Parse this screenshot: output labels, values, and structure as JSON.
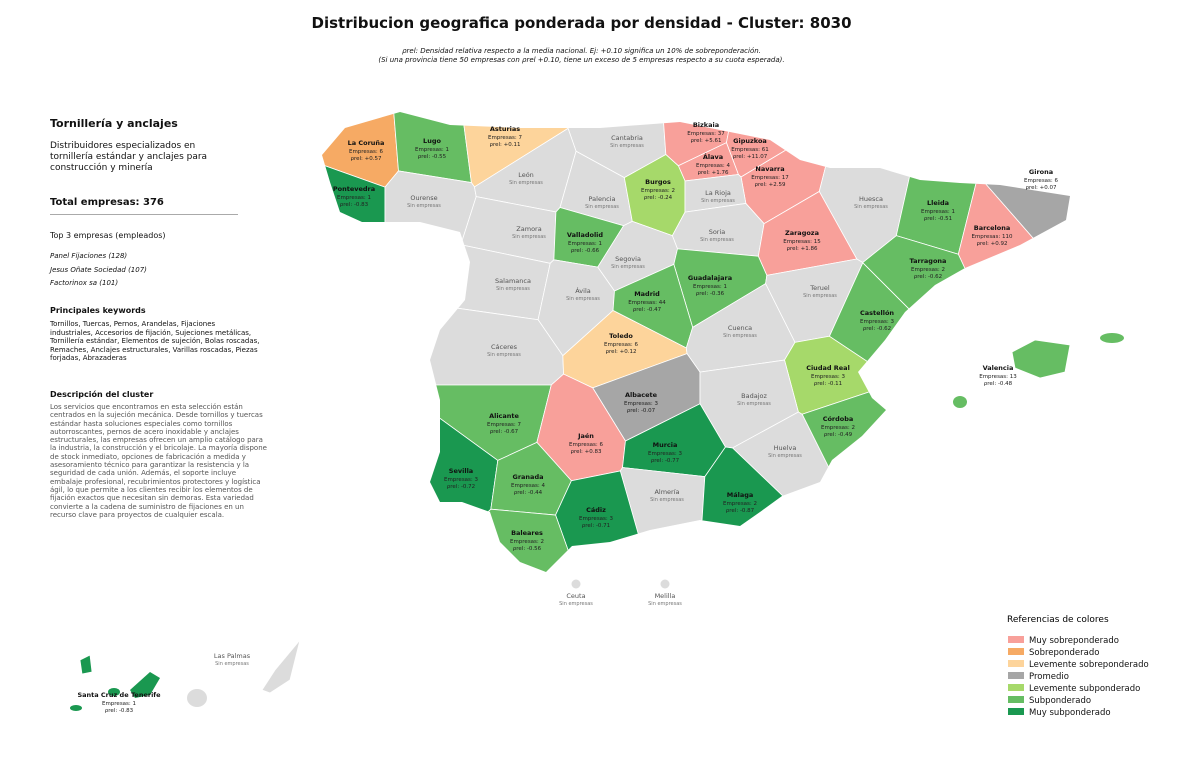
{
  "header": {
    "title": "Distribucion geografica ponderada por densidad - Cluster: 8030",
    "subtitle_lines": [
      "ρrel: Densidad relativa respecto a la media nacional. Ej: +0.10 significa un 10% de sobreponderación.",
      "(Si una provincia tiene 50 empresas con ρrel +0.10, tiene un exceso de 5 empresas respecto a su cuota esperada)."
    ]
  },
  "panel": {
    "title": "Tornillería y anclajes",
    "description": "Distribuidores especializados en tornillería estándar y anclajes para construcción y minería",
    "total": "Total empresas: 376",
    "top_title": "Top 3 empresas (empleados)",
    "top": [
      "Panel Fijaciones (128)",
      "Jesus Oñate Sociedad (107)",
      "Factorinox sa (101)"
    ],
    "keywords_title": "Principales keywords",
    "keywords": "Tornillos, Tuercas, Pernos, Arandelas, Fijaciones industriales, Accesorios de fijación, Sujeciones metálicas, Tornillería estándar, Elementos de sujeción, Bolas roscadas, Remaches, Anclajes estructurales, Varillas roscadas, Piezas forjadas, Abrazaderas",
    "cluster_title": "Descripción del cluster",
    "cluster_text": "Los servicios que encontramos en esta selección están centrados en la sujeción mecánica. Desde tornillos y tuercas estándar hasta soluciones especiales como tornillos autorroscantes, pernos de acero inoxidable y anclajes estructurales, las empresas ofrecen un amplio catálogo para la industria, la construcción y el bricolaje. La mayoría dispone de stock inmediato, opciones de fabricación a medida y asesoramiento técnico para garantizar la resistencia y la seguridad de cada unión. Además, el soporte incluye embalaje profesional, recubrimientos protectores y logística ágil, lo que permite a los clientes recibir los elementos de fijación exactos que necesitan sin demoras. Esta variedad convierte a la cadena de suministro de fijaciones en un recurso clave para proyectos de cualquier escala."
  },
  "legend": {
    "title": "Referencias de colores",
    "items": [
      {
        "label": "Muy sobreponderado",
        "color": "#f8a09a"
      },
      {
        "label": "Sobreponderado",
        "color": "#f6aa64"
      },
      {
        "label": "Levemente sobreponderado",
        "color": "#fdd49b"
      },
      {
        "label": "Promedio",
        "color": "#a6a6a6"
      },
      {
        "label": "Levemente subponderado",
        "color": "#a6d96a"
      },
      {
        "label": "Subponderado",
        "color": "#66bd63"
      },
      {
        "label": "Muy subponderado",
        "color": "#1a9850"
      }
    ]
  },
  "provinces": [
    {
      "name": "La Coruña",
      "empresas": "Empresas: 6",
      "rho": "ρrel: +0.57",
      "color": "#f6aa64"
    },
    {
      "name": "Lugo",
      "empresas": "Empresas: 1",
      "rho": "ρrel: -0.55",
      "color": "#66bd63"
    },
    {
      "name": "Asturias",
      "empresas": "Empresas: 7",
      "rho": "ρrel: +0.11",
      "color": "#fdd49b"
    },
    {
      "name": "Cantabria",
      "status": "Sin empresas",
      "color": "#dcdcdc"
    },
    {
      "name": "Bizkaia",
      "empresas": "Empresas: 37",
      "rho": "ρrel: +5.61",
      "color": "#f8a09a"
    },
    {
      "name": "Gipuzkoa",
      "empresas": "Empresas: 61",
      "rho": "ρrel: +11.07",
      "color": "#f8a09a"
    },
    {
      "name": "Álava",
      "empresas": "Empresas: 4",
      "rho": "ρrel: +1.76",
      "color": "#f8a09a"
    },
    {
      "name": "Navarra",
      "empresas": "Empresas: 17",
      "rho": "ρrel: +2.59",
      "color": "#f8a09a"
    },
    {
      "name": "Pontevedra",
      "empresas": "Empresas: 1",
      "rho": "ρrel: -0.83",
      "color": "#1a9850"
    },
    {
      "name": "Ourense",
      "status": "Sin empresas",
      "color": "#dcdcdc"
    },
    {
      "name": "León",
      "status": "Sin empresas",
      "color": "#dcdcdc"
    },
    {
      "name": "Palencia",
      "status": "Sin empresas",
      "color": "#dcdcdc"
    },
    {
      "name": "Burgos",
      "empresas": "Empresas: 2",
      "rho": "ρrel: -0.24",
      "color": "#a6d96a"
    },
    {
      "name": "La Rioja",
      "status": "Sin empresas",
      "color": "#dcdcdc"
    },
    {
      "name": "Huesca",
      "status": "Sin empresas",
      "color": "#dcdcdc"
    },
    {
      "name": "Lleida",
      "empresas": "Empresas: 1",
      "rho": "ρrel: -0.51",
      "color": "#66bd63"
    },
    {
      "name": "Girona",
      "empresas": "Empresas: 6",
      "rho": "ρrel: +0.07",
      "color": "#a6a6a6"
    },
    {
      "name": "Barcelona",
      "empresas": "Empresas: 110",
      "rho": "ρrel: +0.92",
      "color": "#f8a09a"
    },
    {
      "name": "Zamora",
      "status": "Sin empresas",
      "color": "#dcdcdc"
    },
    {
      "name": "Valladolid",
      "empresas": "Empresas: 1",
      "rho": "ρrel: -0.66",
      "color": "#66bd63"
    },
    {
      "name": "Soria",
      "status": "Sin empresas",
      "color": "#dcdcdc"
    },
    {
      "name": "Zaragoza",
      "empresas": "Empresas: 15",
      "rho": "ρrel: +1.86",
      "color": "#f8a09a"
    },
    {
      "name": "Tarragona",
      "empresas": "Empresas: 2",
      "rho": "ρrel: -0.62",
      "color": "#66bd63"
    },
    {
      "name": "Segovia",
      "status": "Sin empresas",
      "color": "#dcdcdc"
    },
    {
      "name": "Salamanca",
      "status": "Sin empresas",
      "color": "#dcdcdc"
    },
    {
      "name": "Ávila",
      "status": "Sin empresas",
      "color": "#dcdcdc"
    },
    {
      "name": "Guadalajara",
      "empresas": "Empresas: 1",
      "rho": "ρrel: -0.36",
      "color": "#66bd63"
    },
    {
      "name": "Madrid",
      "empresas": "Empresas: 44",
      "rho": "ρrel: -0.47",
      "color": "#66bd63"
    },
    {
      "name": "Teruel",
      "status": "Sin empresas",
      "color": "#dcdcdc"
    },
    {
      "name": "Castellón",
      "empresas": "Empresas: 3",
      "rho": "ρrel: -0.62",
      "color": "#66bd63"
    },
    {
      "name": "Cáceres",
      "status": "Sin empresas",
      "color": "#dcdcdc"
    },
    {
      "name": "Toledo",
      "empresas": "Empresas: 6",
      "rho": "ρrel: +0.12",
      "color": "#fdd49b"
    },
    {
      "name": "Cuenca",
      "status": "Sin empresas",
      "color": "#dcdcdc"
    },
    {
      "name": "Valencia",
      "empresas": "Empresas: 13",
      "rho": "ρrel: -0.48",
      "color": "#66bd63"
    },
    {
      "name": "Ciudad Real",
      "empresas": "Empresas: 3",
      "rho": "ρrel: -0.11",
      "color": "#a6d96a"
    },
    {
      "name": "Albacete",
      "empresas": "Empresas: 3",
      "rho": "ρrel: -0.07",
      "color": "#a6a6a6"
    },
    {
      "name": "Badajoz",
      "status": "Sin empresas",
      "color": "#dcdcdc"
    },
    {
      "name": "Alicante",
      "empresas": "Empresas: 7",
      "rho": "ρrel: -0.67",
      "color": "#66bd63"
    },
    {
      "name": "Córdoba",
      "empresas": "Empresas: 2",
      "rho": "ρrel: -0.49",
      "color": "#66bd63"
    },
    {
      "name": "Jaén",
      "empresas": "Empresas: 6",
      "rho": "ρrel: +0.83",
      "color": "#f8a09a"
    },
    {
      "name": "Murcia",
      "empresas": "Empresas: 3",
      "rho": "ρrel: -0.77",
      "color": "#1a9850"
    },
    {
      "name": "Huelva",
      "status": "Sin empresas",
      "color": "#dcdcdc"
    },
    {
      "name": "Sevilla",
      "empresas": "Empresas: 3",
      "rho": "ρrel: -0.72",
      "color": "#1a9850"
    },
    {
      "name": "Granada",
      "empresas": "Empresas: 4",
      "rho": "ρrel: -0.44",
      "color": "#66bd63"
    },
    {
      "name": "Almería",
      "status": "Sin empresas",
      "color": "#dcdcdc"
    },
    {
      "name": "Málaga",
      "empresas": "Empresas: 2",
      "rho": "ρrel: -0.87",
      "color": "#1a9850"
    },
    {
      "name": "Cádiz",
      "empresas": "Empresas: 3",
      "rho": "ρrel: -0.71",
      "color": "#1a9850"
    },
    {
      "name": "Baleares",
      "empresas": "Empresas: 2",
      "rho": "ρrel: -0.56",
      "color": "#66bd63"
    },
    {
      "name": "Ceuta",
      "status": "Sin empresas",
      "color": "#dcdcdc"
    },
    {
      "name": "Melilla",
      "status": "Sin empresas",
      "color": "#dcdcdc"
    },
    {
      "name": "Las Palmas",
      "status": "Sin empresas",
      "color": "#dcdcdc"
    },
    {
      "name": "Santa Cruz de Tenerife",
      "empresas": "Empresas: 1",
      "rho": "ρrel: -0.83",
      "color": "#1a9850"
    }
  ]
}
